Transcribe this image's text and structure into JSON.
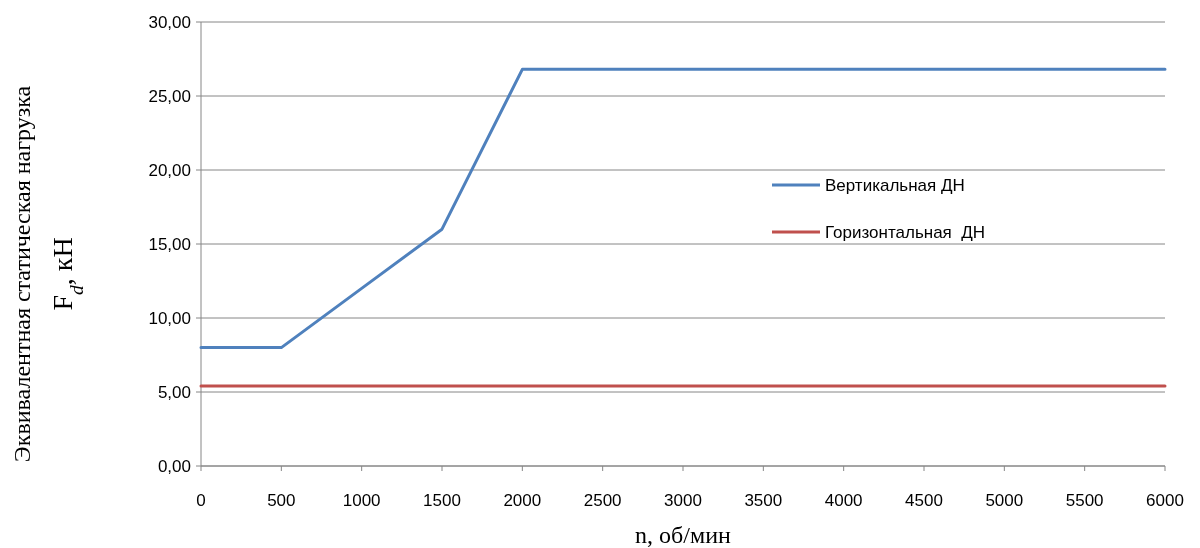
{
  "chart_data": {
    "type": "line",
    "xlabel": "n, об/мин",
    "ylabel": "Эквивалентная статическая нагрузка\nF$_{d}$, кН",
    "x": [
      0,
      500,
      1000,
      1500,
      2000,
      2500,
      3000,
      3500,
      4000,
      4500,
      5000,
      5500,
      6000
    ],
    "series": [
      {
        "name": "Вертикальная ДН",
        "color": "#4f81bd",
        "values": [
          8.0,
          8.0,
          12.0,
          16.0,
          26.8,
          26.8,
          26.8,
          26.8,
          26.8,
          26.8,
          26.8,
          26.8,
          26.8
        ]
      },
      {
        "name": "Горизонтальная  ДН",
        "color": "#c0504d",
        "values": [
          5.4,
          5.4,
          5.4,
          5.4,
          5.4,
          5.4,
          5.4,
          5.4,
          5.4,
          5.4,
          5.4,
          5.4,
          5.4
        ]
      }
    ],
    "xlim": [
      0,
      6000
    ],
    "xticks": [
      0,
      500,
      1000,
      1500,
      2000,
      2500,
      3000,
      3500,
      4000,
      4500,
      5000,
      5500,
      6000
    ],
    "ylim": [
      0,
      30
    ],
    "yticks": [
      {
        "value": 0,
        "label": "0,00"
      },
      {
        "value": 5,
        "label": "5,00"
      },
      {
        "value": 10,
        "label": "10,00"
      },
      {
        "value": 15,
        "label": "15,00"
      },
      {
        "value": 20,
        "label": "20,00"
      },
      {
        "value": 25,
        "label": "25,00"
      },
      {
        "value": 30,
        "label": "30,00"
      }
    ],
    "grid": "y",
    "legend": "right",
    "marker": "none",
    "line_style": "solid"
  }
}
